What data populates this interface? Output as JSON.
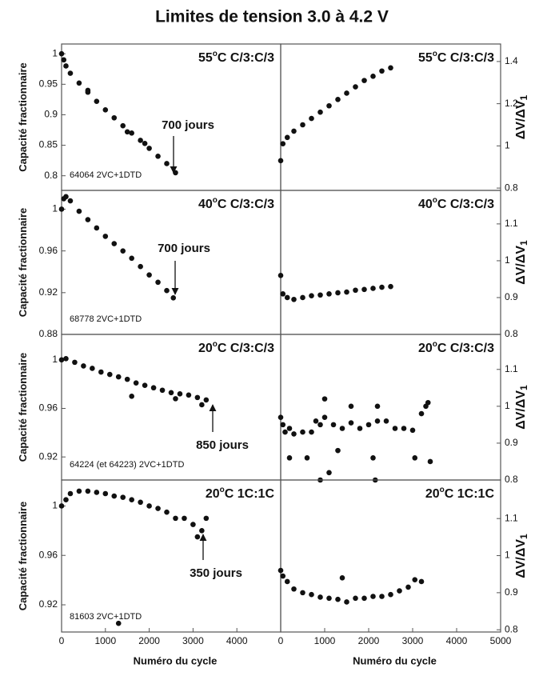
{
  "title": "Limites de tension 3.0 à 4.2 V",
  "chart_data": [
    {
      "type": "scatter",
      "title_parts": [
        "55",
        "o",
        "C C/3:C/3"
      ],
      "y_label_parts": [
        "Capacité fractionnaire"
      ],
      "annotation": "700 jours",
      "cell_label": "64064 2VC+1DTD",
      "color": "#111111",
      "x": [
        0,
        50,
        100,
        200,
        400,
        600,
        800,
        1000,
        1200,
        1400,
        1600,
        1800,
        2000,
        2200,
        2400,
        2600,
        600,
        1500,
        1900
      ],
      "y": [
        1.0,
        0.99,
        0.98,
        0.968,
        0.952,
        0.937,
        0.922,
        0.908,
        0.895,
        0.882,
        0.87,
        0.858,
        0.845,
        0.832,
        0.82,
        0.805,
        0.94,
        0.872,
        0.853
      ],
      "xlim": [
        0,
        5000
      ],
      "ylim": [
        0.776,
        1.016
      ],
      "yticks": [
        1,
        0.95,
        0.9,
        0.85,
        0.8
      ]
    },
    {
      "type": "scatter",
      "title_parts": [
        "55",
        "o",
        "C C/3:C/3"
      ],
      "y_label_parts": [
        "ΔV/ΔV",
        "1"
      ],
      "color": "#111111",
      "x": [
        0,
        50,
        150,
        300,
        500,
        700,
        900,
        1100,
        1300,
        1500,
        1700,
        1900,
        2100,
        2300,
        2500
      ],
      "y": [
        0.93,
        1.01,
        1.04,
        1.07,
        1.1,
        1.13,
        1.16,
        1.19,
        1.22,
        1.25,
        1.28,
        1.31,
        1.33,
        1.355,
        1.37
      ],
      "xlim": [
        0,
        5000
      ],
      "ylim": [
        0.789,
        1.483
      ],
      "yticks": [
        1.4,
        1.2,
        1,
        0.8
      ]
    },
    {
      "type": "scatter",
      "title_parts": [
        "40",
        "o",
        "C C/3:C/3"
      ],
      "y_label_parts": [
        "Capacité fractionnaire"
      ],
      "annotation": "700 jours",
      "cell_label": "68778 2VC+1DTD",
      "color": "#111111",
      "x": [
        0,
        50,
        100,
        200,
        400,
        600,
        800,
        1000,
        1200,
        1400,
        1600,
        1800,
        2000,
        2200,
        2400,
        2550
      ],
      "y": [
        1.0,
        1.01,
        1.012,
        1.008,
        0.998,
        0.99,
        0.982,
        0.974,
        0.967,
        0.96,
        0.953,
        0.945,
        0.937,
        0.93,
        0.922,
        0.915
      ],
      "xlim": [
        0,
        5000
      ],
      "ylim": [
        0.88,
        1.018
      ],
      "yticks": [
        1,
        0.96,
        0.92,
        0.88
      ]
    },
    {
      "type": "scatter",
      "title_parts": [
        "40",
        "o",
        "C C/3:C/3"
      ],
      "y_label_parts": [
        "ΔV/ΔV",
        "1"
      ],
      "color": "#111111",
      "x": [
        0,
        50,
        150,
        300,
        500,
        700,
        900,
        1100,
        1300,
        1500,
        1700,
        1900,
        2100,
        2300,
        2500
      ],
      "y": [
        0.96,
        0.91,
        0.9,
        0.895,
        0.9,
        0.905,
        0.907,
        0.91,
        0.913,
        0.915,
        0.92,
        0.922,
        0.925,
        0.928,
        0.93
      ],
      "xlim": [
        0,
        5000
      ],
      "ylim": [
        0.8,
        1.191
      ],
      "yticks": [
        1.1,
        1,
        0.9,
        0.8
      ]
    },
    {
      "type": "scatter",
      "title_parts": [
        "20",
        "o",
        "C C/3:C/3"
      ],
      "y_label_parts": [
        "Capacité fractionnaire"
      ],
      "annotation": "850 jours",
      "cell_label": "64224 (et 64223) 2VC+1DTD",
      "color": "#111111",
      "x": [
        0,
        100,
        300,
        500,
        700,
        900,
        1100,
        1300,
        1500,
        1700,
        1900,
        2100,
        2300,
        2500,
        2700,
        2900,
        3100,
        3300,
        1600,
        2600,
        3200
      ],
      "y": [
        1.0,
        1.001,
        0.998,
        0.995,
        0.993,
        0.99,
        0.988,
        0.986,
        0.984,
        0.981,
        0.979,
        0.977,
        0.975,
        0.973,
        0.972,
        0.971,
        0.969,
        0.967,
        0.97,
        0.968,
        0.963
      ],
      "xlim": [
        0,
        5000
      ],
      "ylim": [
        0.901,
        1.021
      ],
      "yticks": [
        1,
        0.96,
        0.92
      ]
    },
    {
      "type": "scatter",
      "title_parts": [
        "20",
        "o",
        "C C/3:C/3"
      ],
      "y_label_parts": [
        "ΔV/ΔV",
        "1"
      ],
      "color": "#111111",
      "x": [
        0,
        50,
        100,
        200,
        300,
        500,
        700,
        800,
        900,
        1000,
        1200,
        1400,
        1600,
        1800,
        2000,
        2200,
        2400,
        2600,
        2800,
        3000,
        3200,
        3300,
        3350,
        200,
        600,
        900,
        1100,
        1300,
        2100,
        2150,
        3050,
        3400,
        1600,
        1000,
        2200
      ],
      "y": [
        0.97,
        0.95,
        0.93,
        0.94,
        0.925,
        0.93,
        0.93,
        0.96,
        0.95,
        0.97,
        0.95,
        0.94,
        0.955,
        0.94,
        0.95,
        0.96,
        0.96,
        0.94,
        0.94,
        0.935,
        0.98,
        1.0,
        1.01,
        0.86,
        0.86,
        0.8,
        0.82,
        0.88,
        0.86,
        0.8,
        0.86,
        0.85,
        1.0,
        1.02,
        1.0
      ],
      "xlim": [
        0,
        5000
      ],
      "ylim": [
        0.8,
        1.195
      ],
      "yticks": [
        1.1,
        1,
        0.9,
        0.8
      ]
    },
    {
      "type": "scatter",
      "title_parts": [
        "20",
        "o",
        "C 1C:1C"
      ],
      "y_label_parts": [
        "Capacité fractionnaire"
      ],
      "x_label": "Numéro du cycle",
      "annotation": "350 jours",
      "cell_label": "81603 2VC+1DTD",
      "color": "#111111",
      "x": [
        0,
        100,
        200,
        400,
        600,
        800,
        1000,
        1200,
        1400,
        1600,
        1800,
        2000,
        2200,
        2400,
        2600,
        2800,
        3000,
        3100,
        3200,
        3300,
        1300
      ],
      "y": [
        1.0,
        1.005,
        1.01,
        1.012,
        1.012,
        1.011,
        1.01,
        1.008,
        1.007,
        1.005,
        1.003,
        1.0,
        0.998,
        0.995,
        0.99,
        0.99,
        0.985,
        0.975,
        0.98,
        0.99,
        0.905
      ],
      "xlim": [
        0,
        5000
      ],
      "ylim": [
        0.898,
        1.021
      ],
      "yticks": [
        1,
        0.96,
        0.92
      ],
      "xticks": [
        0,
        1000,
        2000,
        3000,
        4000
      ]
    },
    {
      "type": "scatter",
      "title_parts": [
        "20",
        "o",
        "C 1C:1C"
      ],
      "y_label_parts": [
        "ΔV/ΔV",
        "1"
      ],
      "x_label": "Numéro du cycle",
      "color": "#111111",
      "x": [
        0,
        50,
        150,
        300,
        500,
        700,
        900,
        1100,
        1300,
        1400,
        1500,
        1700,
        1900,
        2100,
        2300,
        2500,
        2700,
        2900,
        3050,
        3200
      ],
      "y": [
        0.96,
        0.945,
        0.93,
        0.91,
        0.9,
        0.895,
        0.888,
        0.885,
        0.882,
        0.94,
        0.875,
        0.885,
        0.885,
        0.89,
        0.89,
        0.895,
        0.905,
        0.915,
        0.935,
        0.93
      ],
      "xlim": [
        0,
        5000
      ],
      "ylim": [
        0.794,
        1.204
      ],
      "yticks": [
        1.1,
        1,
        0.9,
        0.8
      ],
      "xticks": [
        0,
        1000,
        2000,
        3000,
        4000,
        5000
      ]
    }
  ]
}
